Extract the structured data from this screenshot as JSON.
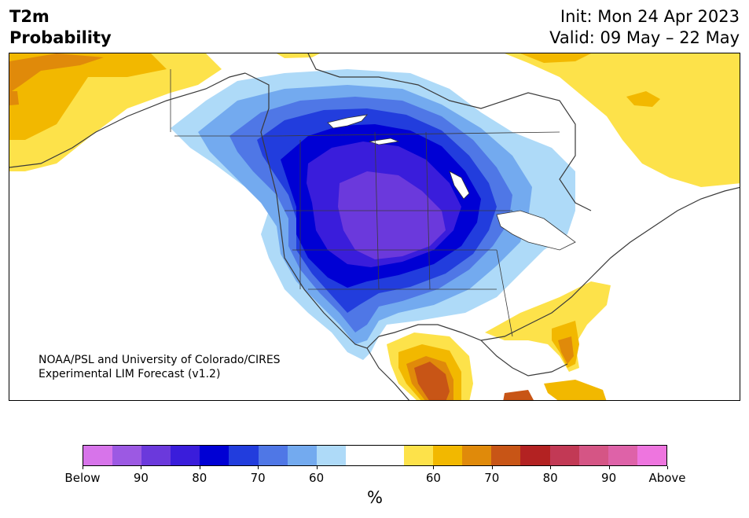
{
  "header": {
    "variable": "T2m",
    "product": "Probability",
    "init": "Init: Mon 24 Apr 2023",
    "valid": "Valid: 09 May – 22 May"
  },
  "credit": {
    "line1": "NOAA/PSL and University of Colorado/CIRES",
    "line2": "Experimental LIM Forecast (v1.2)"
  },
  "colorbar": {
    "unit": "%",
    "colors": [
      "#d774ea",
      "#9c59e3",
      "#6b39dc",
      "#3a1ddb",
      "#0000d4",
      "#223ddd",
      "#4f77e6",
      "#73aaef",
      "#aedaf8",
      "#ffffff",
      "#ffffff",
      "#fde24a",
      "#f2b800",
      "#e08a0a",
      "#c85516",
      "#b32222",
      "#c23955",
      "#d55585",
      "#de62a8",
      "#ee75df"
    ],
    "labels": [
      "Below",
      "90",
      "80",
      "70",
      "60",
      "60",
      "70",
      "80",
      "90",
      "Above"
    ]
  },
  "legend_map": {
    "cold_anomaly_center": "Great Plains / Northern Rockies",
    "warm_anomaly_regions": [
      "Alaska",
      "Southeast US",
      "Northern Mexico",
      "Eastern Canada / Labrador",
      "Cuba"
    ]
  }
}
